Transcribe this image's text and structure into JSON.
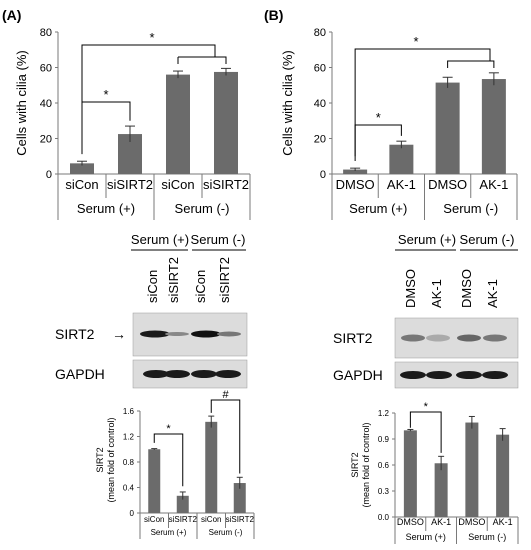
{
  "panels": [
    {
      "id": "A",
      "label": "(A)",
      "top_chart": {
        "type": "bar",
        "ylabel": "Cells with cilia (%)",
        "ylim": [
          0,
          80
        ],
        "yticks": [
          "0",
          "20",
          "40",
          "60",
          "80"
        ],
        "categories": [
          "siCon",
          "siSIRT2",
          "siCon",
          "siSIRT2"
        ],
        "values": [
          6,
          22.5,
          56,
          57.5
        ],
        "errors": [
          1.2,
          4.5,
          2.0,
          2.0
        ],
        "groups": [
          "Serum (+)",
          "Serum (-)"
        ],
        "significance": [
          "*",
          "*"
        ]
      },
      "blot": {
        "groups": [
          "Serum (+)",
          "Serum (-)"
        ],
        "lanes": [
          "siCon",
          "siSIRT2",
          "siCon",
          "siSIRT2"
        ],
        "rows": [
          "SIRT2",
          "GAPDH"
        ],
        "arrow": "→"
      },
      "bottom_chart": {
        "type": "bar",
        "ylabel_line1": "SIRT2",
        "ylabel_line2": "(mean fold of control)",
        "ylim": [
          0,
          1.6
        ],
        "yticks": [
          "0",
          "0.4",
          "0.8",
          "1.2",
          "1.6"
        ],
        "categories": [
          "siCon",
          "siSIRT2",
          "siCon",
          "siSIRT2"
        ],
        "values": [
          1.0,
          0.27,
          1.43,
          0.47
        ],
        "errors": [
          0.01,
          0.06,
          0.09,
          0.09
        ],
        "groups": [
          "Serum (+)",
          "Serum (-)"
        ],
        "significance": [
          "*",
          "#"
        ]
      }
    },
    {
      "id": "B",
      "label": "(B)",
      "top_chart": {
        "type": "bar",
        "ylabel": "Cells with cilia (%)",
        "ylim": [
          0,
          80
        ],
        "yticks": [
          "0",
          "20",
          "40",
          "60",
          "80"
        ],
        "categories": [
          "DMSO",
          "AK-1",
          "DMSO",
          "AK-1"
        ],
        "values": [
          2.5,
          16.5,
          51.5,
          53.5
        ],
        "errors": [
          0.8,
          2.0,
          3.0,
          3.5
        ],
        "groups": [
          "Serum (+)",
          "Serum (-)"
        ],
        "significance": [
          "*",
          "*"
        ]
      },
      "blot": {
        "groups": [
          "Serum (+)",
          "Serum (-)"
        ],
        "lanes": [
          "DMSO",
          "AK-1",
          "DMSO",
          "AK-1"
        ],
        "rows": [
          "SIRT2",
          "GAPDH"
        ]
      },
      "bottom_chart": {
        "type": "bar",
        "ylabel_line1": "SIRT2",
        "ylabel_line2": "(mean fold of control)",
        "ylim": [
          0,
          1.2
        ],
        "yticks": [
          "0.0",
          "0.3",
          "0.6",
          "0.9",
          "1.2"
        ],
        "categories": [
          "DMSO",
          "AK-1",
          "DMSO",
          "AK-1"
        ],
        "values": [
          1.0,
          0.62,
          1.09,
          0.95
        ],
        "errors": [
          0.01,
          0.08,
          0.07,
          0.07
        ],
        "groups": [
          "Serum (+)",
          "Serum (-)"
        ],
        "significance": [
          "*"
        ]
      }
    }
  ],
  "chart_data": [
    {
      "type": "bar",
      "panel": "A",
      "ylabel": "Cells with cilia (%)",
      "ylim": [
        0,
        80
      ],
      "categories": [
        "siCon",
        "siSIRT2",
        "siCon",
        "siSIRT2"
      ],
      "series": [
        {
          "values": [
            6,
            22.5,
            56,
            57.5
          ]
        }
      ]
    },
    {
      "type": "bar",
      "panel": "A",
      "ylabel": "SIRT2 (mean fold of control)",
      "ylim": [
        0,
        1.6
      ],
      "categories": [
        "siCon",
        "siSIRT2",
        "siCon",
        "siSIRT2"
      ],
      "series": [
        {
          "values": [
            1.0,
            0.27,
            1.43,
            0.47
          ]
        }
      ]
    },
    {
      "type": "bar",
      "panel": "B",
      "ylabel": "Cells with cilia (%)",
      "ylim": [
        0,
        80
      ],
      "categories": [
        "DMSO",
        "AK-1",
        "DMSO",
        "AK-1"
      ],
      "series": [
        {
          "values": [
            2.5,
            16.5,
            51.5,
            53.5
          ]
        }
      ]
    },
    {
      "type": "bar",
      "panel": "B",
      "ylabel": "SIRT2 (mean fold of control)",
      "ylim": [
        0,
        1.2
      ],
      "categories": [
        "DMSO",
        "AK-1",
        "DMSO",
        "AK-1"
      ],
      "series": [
        {
          "values": [
            1.0,
            0.62,
            1.09,
            0.95
          ]
        }
      ]
    }
  ],
  "colors": {
    "bar": "#6b6b6b",
    "axis": "#7a7a7a",
    "text": "#000000",
    "blot_bg": "#dcdcdc",
    "band": "#1a1a1a"
  }
}
